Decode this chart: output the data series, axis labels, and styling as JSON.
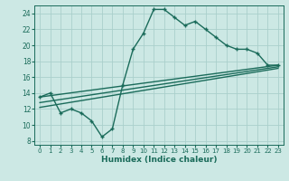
{
  "title": "",
  "xlabel": "Humidex (Indice chaleur)",
  "ylabel": "",
  "bg_color": "#cce8e4",
  "grid_color": "#aacfcb",
  "line_color": "#1a6b5a",
  "xlim": [
    -0.5,
    23.5
  ],
  "ylim": [
    7.5,
    25.0
  ],
  "xticks": [
    0,
    1,
    2,
    3,
    4,
    5,
    6,
    7,
    8,
    9,
    10,
    11,
    12,
    13,
    14,
    15,
    16,
    17,
    18,
    19,
    20,
    21,
    22,
    23
  ],
  "yticks": [
    8,
    10,
    12,
    14,
    16,
    18,
    20,
    22,
    24
  ],
  "line1_x": [
    0,
    1,
    2,
    3,
    4,
    5,
    6,
    7,
    8,
    9,
    10,
    11,
    12,
    13,
    14,
    15,
    16,
    17,
    18,
    19,
    20,
    21,
    22,
    23
  ],
  "line1_y": [
    13.5,
    14.0,
    11.5,
    12.0,
    11.5,
    10.5,
    8.5,
    9.5,
    15.0,
    19.5,
    21.5,
    24.5,
    24.5,
    23.5,
    22.5,
    23.0,
    22.0,
    21.0,
    20.0,
    19.5,
    19.5,
    19.0,
    17.5,
    17.5
  ],
  "line2_x": [
    0,
    23
  ],
  "line2_y": [
    13.5,
    17.5
  ],
  "line3_x": [
    0,
    23
  ],
  "line3_y": [
    12.8,
    17.3
  ],
  "line4_x": [
    0,
    23
  ],
  "line4_y": [
    12.2,
    17.1
  ],
  "marker": "+"
}
